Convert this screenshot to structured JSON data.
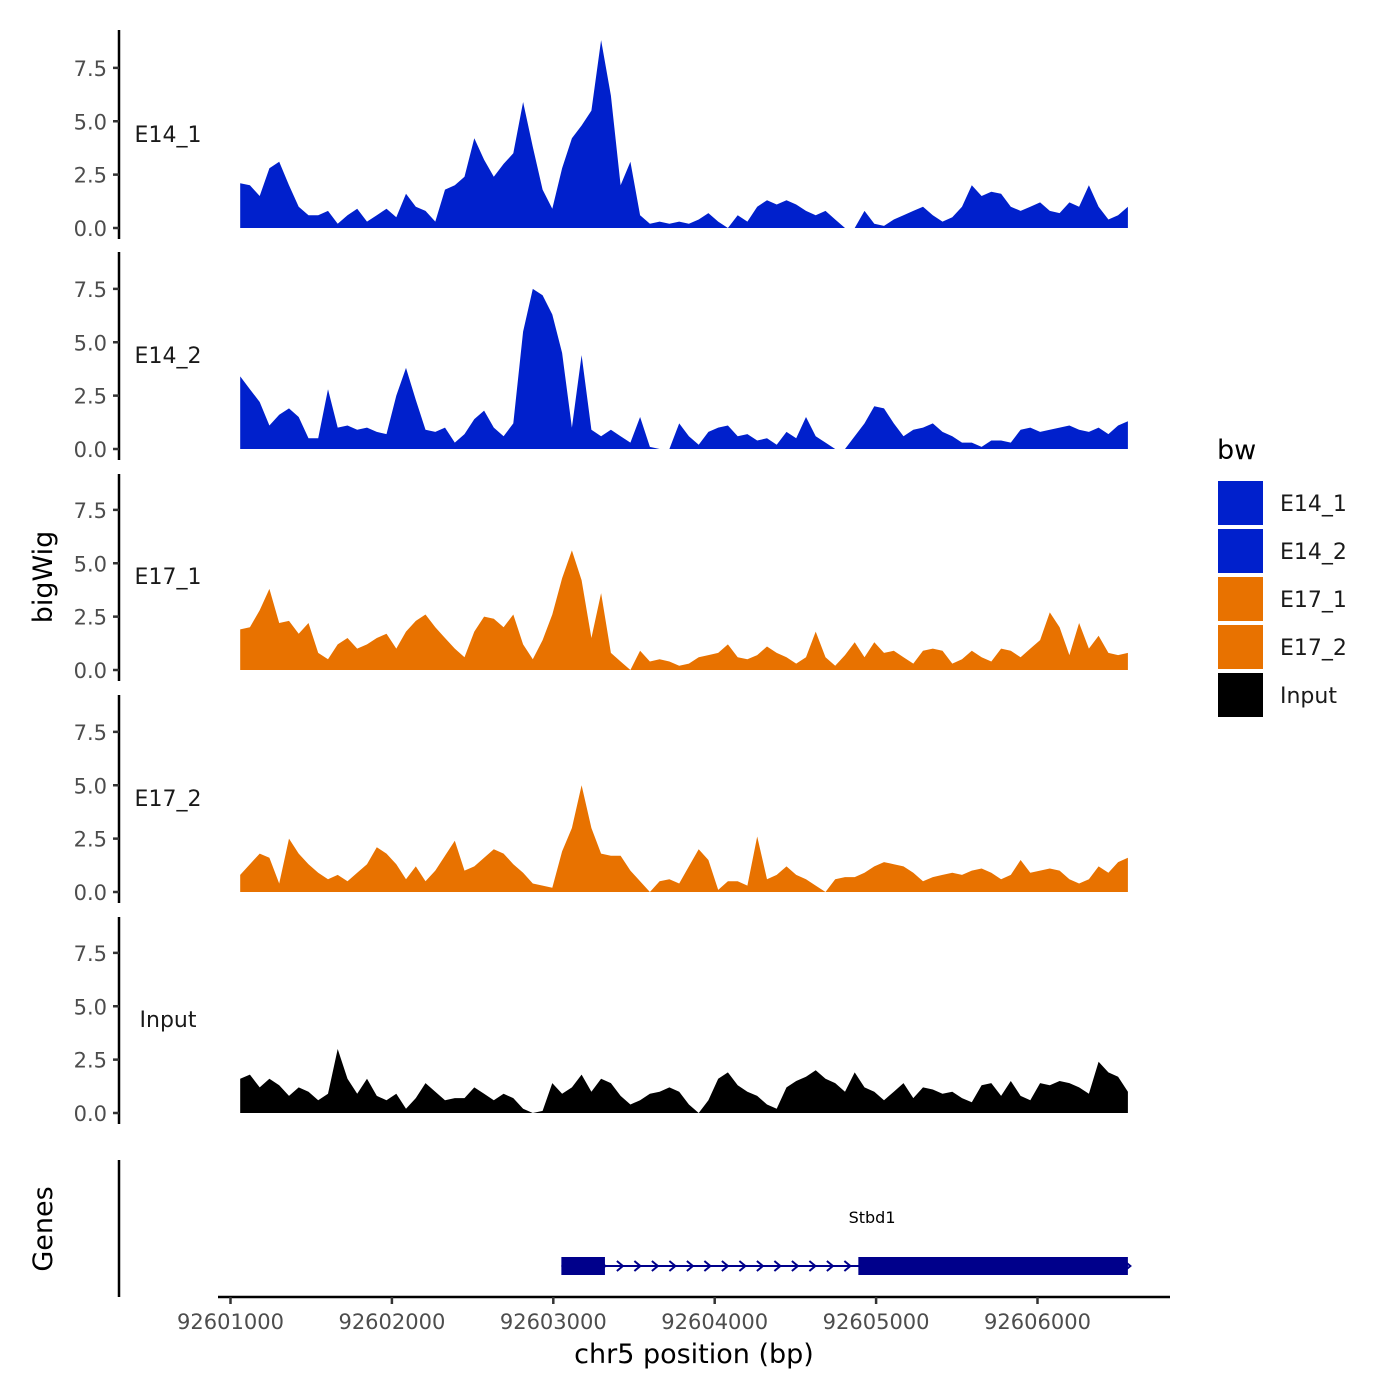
{
  "chart_data": {
    "type": "area",
    "ylabel": "bigWig",
    "xlabel": "chr5 position (bp)",
    "ylim": [
      0,
      9.2
    ],
    "yticks": [
      0.0,
      2.5,
      5.0,
      7.5
    ],
    "ytick_labels": [
      "0.0",
      "2.5",
      "5.0",
      "7.5"
    ],
    "xlim": [
      92600800,
      92606800
    ],
    "xticks": [
      92601000,
      92602000,
      92603000,
      92604000,
      92605000,
      92606000
    ],
    "xtick_labels": [
      "92601000",
      "92602000",
      "92603000",
      "92604000",
      "92605000",
      "92606000"
    ],
    "x_start": 92601060,
    "x_end": 92606560,
    "legend": {
      "title": "bw",
      "placement": "right",
      "entries": [
        {
          "label": "E14_1",
          "color": "#0020CC"
        },
        {
          "label": "E14_2",
          "color": "#0020CC"
        },
        {
          "label": "E17_1",
          "color": "#E87200"
        },
        {
          "label": "E17_2",
          "color": "#E87200"
        },
        {
          "label": "Input",
          "color": "#000000"
        }
      ]
    },
    "series": [
      {
        "name": "E14_1",
        "color": "#0020CC",
        "values": [
          2.1,
          2.0,
          1.5,
          2.8,
          3.1,
          2.0,
          1.0,
          0.6,
          0.6,
          0.8,
          0.2,
          0.6,
          0.9,
          0.3,
          0.6,
          0.9,
          0.5,
          1.6,
          1.0,
          0.8,
          0.3,
          1.8,
          2.0,
          2.4,
          4.2,
          3.2,
          2.4,
          3.0,
          3.5,
          5.9,
          3.8,
          1.8,
          0.9,
          2.8,
          4.2,
          4.8,
          5.5,
          8.8,
          6.2,
          2.0,
          3.1,
          0.6,
          0.2,
          0.3,
          0.2,
          0.3,
          0.2,
          0.4,
          0.7,
          0.3,
          0,
          0.6,
          0.3,
          1.0,
          1.3,
          1.1,
          1.3,
          1.1,
          0.8,
          0.6,
          0.8,
          0.4,
          0,
          0,
          0.8,
          0.2,
          0.1,
          0.4,
          0.6,
          0.8,
          1.0,
          0.6,
          0.3,
          0.5,
          1.0,
          2.0,
          1.5,
          1.7,
          1.6,
          1.0,
          0.8,
          1.0,
          1.2,
          0.8,
          0.7,
          1.2,
          1.0,
          2.0,
          1.0,
          0.4,
          0.6,
          1.0
        ]
      },
      {
        "name": "E14_2",
        "color": "#0020CC",
        "values": [
          3.4,
          2.8,
          2.2,
          1.1,
          1.6,
          1.9,
          1.5,
          0.5,
          0.5,
          2.8,
          1.0,
          1.1,
          0.9,
          1.0,
          0.8,
          0.7,
          2.5,
          3.8,
          2.3,
          0.9,
          0.8,
          1.0,
          0.3,
          0.7,
          1.4,
          1.8,
          1.0,
          0.6,
          1.2,
          5.5,
          7.5,
          7.2,
          6.3,
          4.5,
          1.0,
          4.4,
          0.9,
          0.6,
          0.9,
          0.6,
          0.3,
          1.5,
          0.1,
          0,
          0,
          1.2,
          0.6,
          0.2,
          0.8,
          1.0,
          1.1,
          0.6,
          0.7,
          0.4,
          0.5,
          0.2,
          0.8,
          0.5,
          1.5,
          0.6,
          0.3,
          0,
          0,
          0.6,
          1.2,
          2.0,
          1.9,
          1.2,
          0.6,
          0.9,
          1.0,
          1.2,
          0.8,
          0.6,
          0.3,
          0.3,
          0.1,
          0.4,
          0.4,
          0.3,
          0.9,
          1.0,
          0.8,
          0.9,
          1.0,
          1.1,
          0.9,
          0.8,
          1.0,
          0.7,
          1.1,
          1.3
        ]
      },
      {
        "name": "E17_1",
        "color": "#E87200",
        "values": [
          1.9,
          2.0,
          2.8,
          3.8,
          2.2,
          2.3,
          1.7,
          2.2,
          0.8,
          0.5,
          1.2,
          1.5,
          1.0,
          1.2,
          1.5,
          1.7,
          1.0,
          1.8,
          2.3,
          2.6,
          2.0,
          1.5,
          1.0,
          0.6,
          1.8,
          2.5,
          2.4,
          2.0,
          2.6,
          1.2,
          0.5,
          1.4,
          2.6,
          4.3,
          5.6,
          4.2,
          1.5,
          3.6,
          0.8,
          0.4,
          0,
          0.9,
          0.4,
          0.5,
          0.4,
          0.2,
          0.3,
          0.6,
          0.7,
          0.8,
          1.2,
          0.6,
          0.5,
          0.7,
          1.1,
          0.8,
          0.6,
          0.3,
          0.6,
          1.8,
          0.6,
          0.2,
          0.7,
          1.3,
          0.6,
          1.3,
          0.8,
          0.9,
          0.6,
          0.3,
          0.9,
          1.0,
          0.9,
          0.3,
          0.5,
          0.9,
          0.6,
          0.4,
          1.0,
          0.9,
          0.6,
          1.0,
          1.4,
          2.7,
          2.0,
          0.7,
          2.2,
          1.0,
          1.6,
          0.8,
          0.7,
          0.8
        ]
      },
      {
        "name": "E17_2",
        "color": "#E87200",
        "values": [
          0.8,
          1.3,
          1.8,
          1.6,
          0.4,
          2.5,
          1.8,
          1.3,
          0.9,
          0.6,
          0.8,
          0.5,
          0.9,
          1.3,
          2.1,
          1.8,
          1.3,
          0.6,
          1.2,
          0.5,
          1.0,
          1.7,
          2.4,
          1.0,
          1.2,
          1.6,
          2.0,
          1.8,
          1.3,
          0.9,
          0.4,
          0.3,
          0.2,
          1.9,
          3.0,
          5.0,
          3.0,
          1.8,
          1.7,
          1.7,
          1.0,
          0.5,
          0,
          0.5,
          0.6,
          0.4,
          1.2,
          2.0,
          1.5,
          0.1,
          0.5,
          0.5,
          0.3,
          2.6,
          0.6,
          0.8,
          1.2,
          0.8,
          0.6,
          0.3,
          0,
          0.6,
          0.7,
          0.7,
          0.9,
          1.2,
          1.4,
          1.3,
          1.2,
          0.9,
          0.5,
          0.7,
          0.8,
          0.9,
          0.8,
          1.0,
          1.1,
          0.9,
          0.6,
          0.8,
          1.5,
          0.9,
          1.0,
          1.1,
          1.0,
          0.6,
          0.4,
          0.6,
          1.2,
          0.9,
          1.4,
          1.6
        ]
      },
      {
        "name": "Input",
        "color": "#000000",
        "values": [
          1.6,
          1.8,
          1.2,
          1.6,
          1.3,
          0.8,
          1.2,
          1.0,
          0.6,
          0.9,
          3.0,
          1.6,
          0.9,
          1.6,
          0.8,
          0.6,
          0.9,
          0.2,
          0.7,
          1.4,
          1.0,
          0.6,
          0.7,
          0.7,
          1.2,
          0.9,
          0.6,
          0.9,
          0.7,
          0.2,
          0,
          0.1,
          1.4,
          0.9,
          1.2,
          1.8,
          1.0,
          1.6,
          1.4,
          0.8,
          0.4,
          0.6,
          0.9,
          1.0,
          1.2,
          1.0,
          0.4,
          0,
          0.6,
          1.6,
          1.9,
          1.3,
          1.0,
          0.8,
          0.4,
          0.2,
          1.2,
          1.5,
          1.7,
          2.0,
          1.6,
          1.4,
          1.0,
          1.9,
          1.2,
          1.0,
          0.6,
          1.0,
          1.4,
          0.7,
          1.2,
          1.1,
          0.9,
          1.0,
          0.7,
          0.5,
          1.3,
          1.4,
          0.8,
          1.5,
          0.8,
          0.6,
          1.4,
          1.3,
          1.5,
          1.4,
          1.2,
          0.9,
          2.4,
          1.9,
          1.7,
          1.0
        ]
      }
    ],
    "genes": {
      "label": "Genes",
      "items": [
        {
          "name": "Stbd1",
          "start": 92603050,
          "end": 92606560,
          "strand": "+",
          "exons": [
            [
              92603050,
              92603320
            ],
            [
              92604890,
              92606560
            ]
          ],
          "color": "#00008B"
        }
      ]
    }
  }
}
